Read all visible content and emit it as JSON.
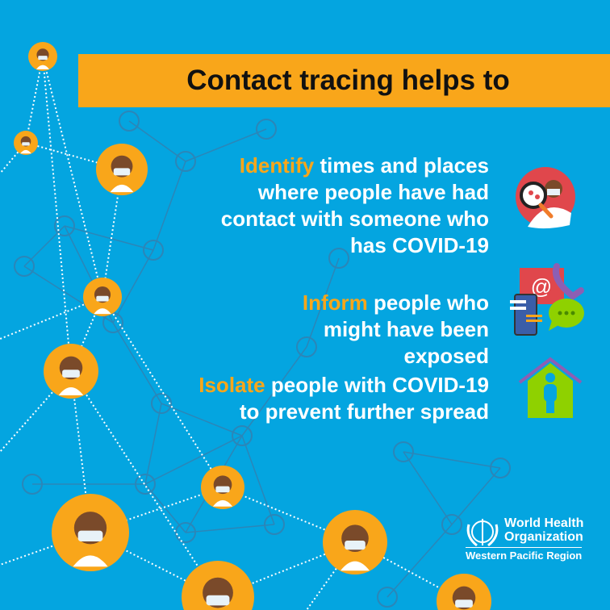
{
  "banner": {
    "title": "Contact tracing helps to"
  },
  "items": [
    {
      "keyword": "Identify",
      "text": " times and places where people have had contact with someone who has COVID-19",
      "icon": "magnifier-virus-person-icon"
    },
    {
      "keyword": "Inform",
      "text": " people who might have been exposed",
      "icon": "communication-icons"
    },
    {
      "keyword": "Isolate",
      "text": " people with COVID-19 to prevent further spread",
      "icon": "house-person-icon"
    }
  ],
  "logo": {
    "name_line1": "World Health",
    "name_line2": "Organization",
    "region": "Western Pacific Region"
  },
  "colors": {
    "background": "#04a5e0",
    "accent": "#f9a61a",
    "text": "#ffffff"
  }
}
